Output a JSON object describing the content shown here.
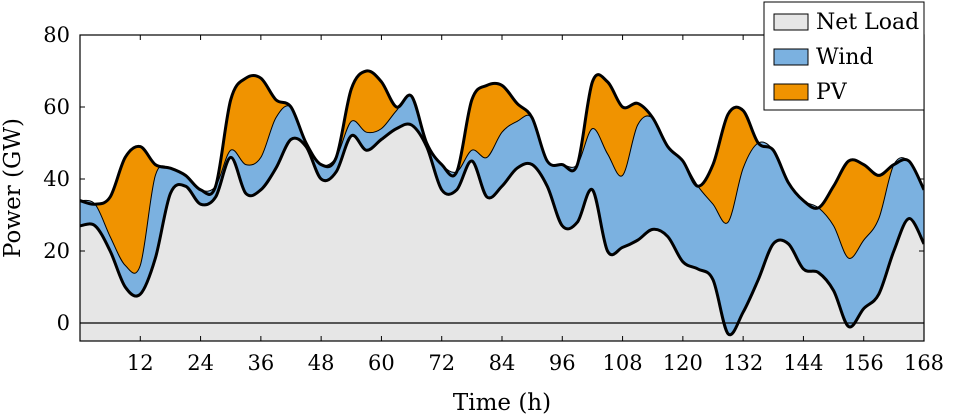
{
  "chart_data": {
    "type": "area",
    "stacked": true,
    "xlabel": "Time (h)",
    "ylabel": "Power (GW)",
    "xlim": [
      0,
      168
    ],
    "ylim": [
      -5,
      80
    ],
    "xticks": [
      12,
      24,
      36,
      48,
      60,
      72,
      84,
      96,
      108,
      120,
      132,
      144,
      156,
      168
    ],
    "yticks": [
      0,
      20,
      40,
      60,
      80
    ],
    "legend_position": "top-right",
    "x": [
      0,
      3,
      6,
      9,
      12,
      15,
      18,
      21,
      24,
      27,
      30,
      33,
      36,
      39,
      42,
      45,
      48,
      51,
      54,
      57,
      60,
      63,
      66,
      69,
      72,
      75,
      78,
      81,
      84,
      87,
      90,
      93,
      96,
      99,
      102,
      105,
      108,
      111,
      114,
      117,
      120,
      123,
      126,
      129,
      132,
      135,
      138,
      141,
      144,
      147,
      150,
      153,
      156,
      159,
      162,
      165,
      168
    ],
    "series": [
      {
        "name": "Net Load",
        "color": "#e6e6e6",
        "values": [
          27,
          27,
          20,
          10,
          8,
          18,
          36,
          38,
          33,
          35,
          46,
          36,
          37,
          43,
          51,
          49,
          40,
          42,
          52,
          48,
          51,
          54,
          55,
          49,
          37,
          37,
          45,
          35,
          38,
          43,
          44,
          38,
          27,
          28,
          37,
          20,
          21,
          23,
          26,
          24,
          17,
          15,
          12,
          -3,
          3,
          12,
          22,
          22,
          15,
          14,
          9,
          -1,
          4,
          8,
          20,
          29,
          22
        ]
      },
      {
        "name": "Wind",
        "color": "#7bb1e0",
        "values": [
          7,
          6,
          4,
          6,
          8,
          23,
          7,
          3,
          4,
          3,
          2,
          8,
          9,
          14,
          9,
          1,
          4,
          4,
          4,
          5,
          3,
          5,
          8,
          1,
          7,
          5,
          3,
          11,
          15,
          13,
          13,
          7,
          17,
          16,
          17,
          27,
          20,
          32,
          31,
          25,
          28,
          23,
          21,
          31,
          40,
          38,
          26,
          17,
          19,
          18,
          18,
          19,
          19,
          21,
          24,
          16,
          15
        ]
      },
      {
        "name": "PV",
        "color": "#f09300",
        "values": [
          0,
          0,
          11,
          30,
          33,
          3,
          0,
          0,
          0,
          0,
          14,
          24,
          22,
          5,
          0,
          0,
          0,
          0,
          9,
          17,
          13,
          1,
          0,
          0,
          0,
          0,
          14,
          20,
          13,
          5,
          0,
          0,
          0,
          0,
          13,
          20,
          19,
          6,
          0,
          0,
          0,
          0,
          11,
          30,
          16,
          0,
          0,
          0,
          0,
          0,
          11,
          27,
          21,
          12,
          0,
          0,
          0
        ]
      }
    ]
  }
}
